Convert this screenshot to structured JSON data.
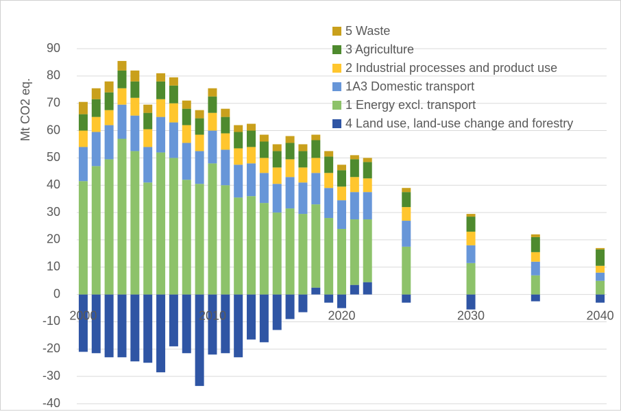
{
  "chart_data": {
    "type": "stacked_bar",
    "y_label": "Mt CO2 eq.",
    "x": [
      2000,
      2001,
      2002,
      2003,
      2004,
      2005,
      2006,
      2007,
      2008,
      2009,
      2010,
      2011,
      2012,
      2013,
      2014,
      2015,
      2016,
      2017,
      2018,
      2019,
      2020,
      2021,
      2022,
      2025,
      2030,
      2035,
      2040
    ],
    "series": [
      {
        "name": "4 Land use, land-use change and forestry",
        "color": "#2f55a4",
        "values": [
          -21,
          -21.5,
          -23,
          -23,
          -24.5,
          -25,
          -28.5,
          -19,
          -21.5,
          -33.5,
          -22,
          -21.5,
          -23,
          -16.5,
          -17.5,
          -13,
          -9,
          -6.5,
          2.5,
          -3,
          -5,
          3.5,
          4.5,
          -3,
          -5.5,
          -2.5,
          -3
        ]
      },
      {
        "name": "1 Energy excl. transport",
        "color": "#8dc26a",
        "values": [
          41.5,
          47,
          49.5,
          57,
          52.5,
          41,
          52,
          50,
          42,
          40.5,
          48,
          40,
          35.5,
          36,
          33.5,
          30,
          31.5,
          29.5,
          30.5,
          28,
          24,
          24,
          23,
          17.5,
          11.5,
          7,
          5
        ]
      },
      {
        "name": "1A3 Domestic transport",
        "color": "#6796d8",
        "values": [
          12.5,
          12.5,
          12.5,
          12.5,
          13,
          13,
          13,
          13,
          13.5,
          12,
          12,
          13,
          12,
          12,
          11,
          10.5,
          11.5,
          11.5,
          11.5,
          11,
          10.5,
          10,
          10,
          9.5,
          6.5,
          5,
          3
        ]
      },
      {
        "name": "2 Industrial processes and product use",
        "color": "#ffc62e",
        "values": [
          6,
          5.5,
          5.5,
          6,
          6.5,
          6.5,
          6.5,
          7,
          6.5,
          6,
          6.5,
          6,
          6,
          6,
          5.5,
          6,
          6.5,
          5.5,
          5.5,
          5.5,
          5,
          5.5,
          5,
          5,
          5,
          3.5,
          2.5
        ]
      },
      {
        "name": "3 Agriculture",
        "color": "#4e8a2e",
        "values": [
          6,
          6.5,
          6.5,
          6.5,
          6,
          6,
          6.5,
          6.5,
          6,
          6,
          6,
          6,
          6,
          6,
          6,
          6,
          6,
          6,
          6.5,
          6,
          6,
          6.5,
          6,
          5.5,
          5.5,
          5.5,
          6
        ]
      },
      {
        "name": "5 Waste",
        "color": "#c9a01c",
        "values": [
          4.5,
          4,
          4,
          3.5,
          4,
          3,
          3,
          3,
          3,
          3,
          3,
          3,
          2.5,
          2.5,
          2.5,
          2.5,
          2.5,
          2.5,
          2,
          2,
          2,
          1.5,
          1.5,
          1.5,
          1,
          1,
          0.5
        ]
      }
    ],
    "xlim": [
      1999.5,
      2040.5
    ],
    "xticks": [
      2000,
      2010,
      2020,
      2030,
      2040
    ],
    "ylim": [
      -40,
      90
    ],
    "yticks": [
      -40,
      -30,
      -20,
      -10,
      0,
      10,
      20,
      30,
      40,
      50,
      60,
      70,
      80,
      90
    ],
    "grid": true,
    "legend": "top-right"
  }
}
